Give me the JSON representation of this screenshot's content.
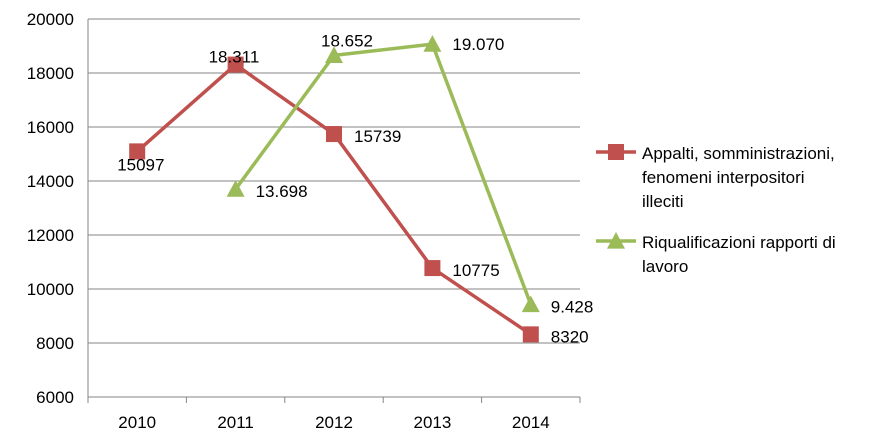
{
  "chart_data": {
    "type": "line",
    "categories": [
      "2010",
      "2011",
      "2012",
      "2013",
      "2014"
    ],
    "ylim": [
      6000,
      20000
    ],
    "yticks": [
      6000,
      8000,
      10000,
      12000,
      14000,
      16000,
      18000,
      20000
    ],
    "ytick_labels": [
      "6000",
      "8000",
      "10000",
      "12000",
      "14000",
      "16000",
      "18000",
      "20000"
    ],
    "grid": true,
    "legend_position": "right",
    "series": [
      {
        "name_lines": [
          "Appalti, somministrazioni,",
          "fenomeni interpositori",
          "illeciti"
        ],
        "color": "#c0504d",
        "marker": "square",
        "values": [
          15097,
          18311,
          15739,
          10775,
          8320
        ],
        "labels": [
          "15097",
          "18.311",
          "15739",
          "10775",
          "8320"
        ]
      },
      {
        "name_lines": [
          "Riqualificazioni rapporti di",
          "lavoro"
        ],
        "color": "#9bbb59",
        "marker": "triangle",
        "values": [
          null,
          13698,
          18652,
          19070,
          9428
        ],
        "labels": [
          "",
          "13.698",
          "18.652",
          "19.070",
          "9.428"
        ]
      }
    ]
  }
}
